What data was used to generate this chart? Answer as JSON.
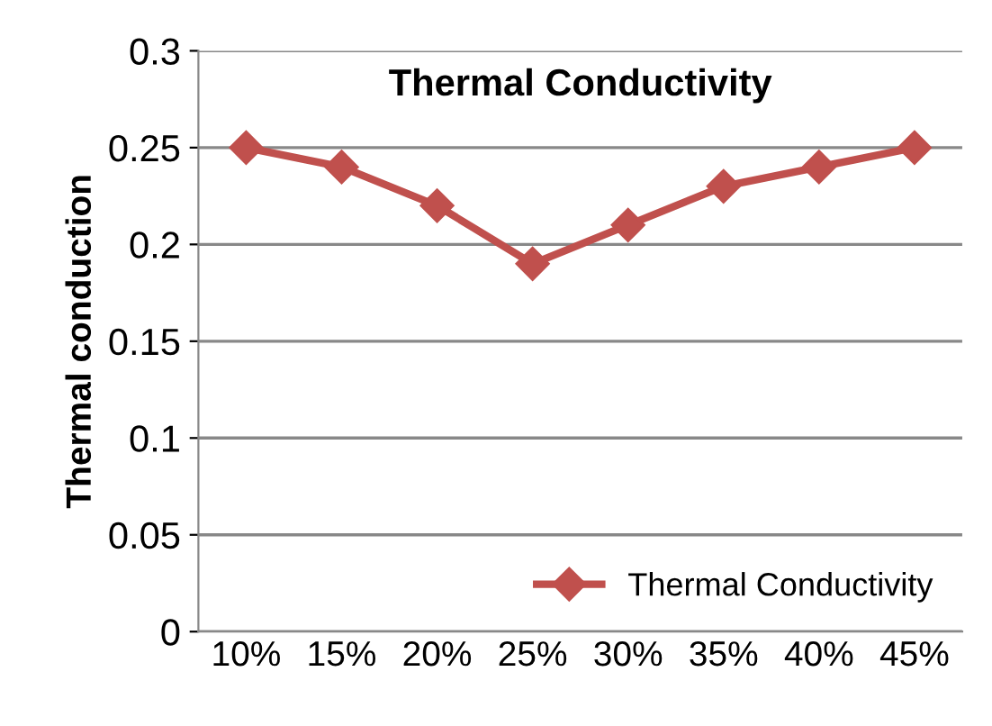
{
  "chart_data": {
    "type": "line",
    "title": "Thermal Conductivity",
    "ylabel": "Thermal conduction",
    "categories": [
      "10%",
      "15%",
      "20%",
      "25%",
      "30%",
      "35%",
      "40%",
      "45%"
    ],
    "series": [
      {
        "name": "Thermal Conductivity",
        "color": "#c0504d",
        "values": [
          0.25,
          0.24,
          0.22,
          0.19,
          0.21,
          0.23,
          0.24,
          0.25
        ]
      }
    ],
    "ylim": [
      0,
      0.3
    ],
    "yticks": [
      0,
      0.05,
      0.1,
      0.15,
      0.2,
      0.25,
      0.3
    ],
    "grid": "y",
    "legend": "bottom right",
    "marker": "diamond",
    "line_style": "solid"
  }
}
